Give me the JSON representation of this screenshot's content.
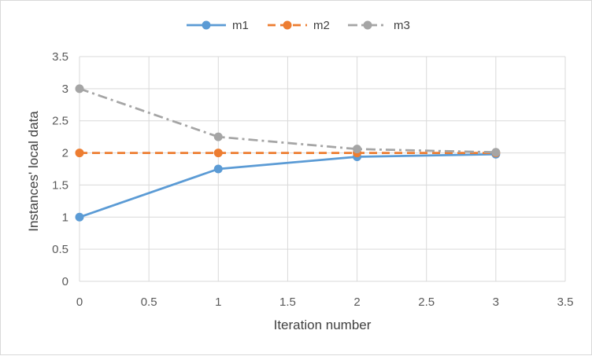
{
  "chart_data": {
    "type": "line",
    "title": "",
    "xlabel": "Iteration number",
    "ylabel": "Instances' local data",
    "xlim": [
      0,
      3.5
    ],
    "ylim": [
      0,
      3.5
    ],
    "xticks": [
      "0",
      "0.5",
      "1",
      "1.5",
      "2",
      "2.5",
      "3",
      "3.5"
    ],
    "yticks": [
      "0",
      "0.5",
      "1",
      "1.5",
      "2",
      "2.5",
      "3",
      "3.5"
    ],
    "grid": true,
    "legend_position": "top",
    "series": [
      {
        "name": "m1",
        "color": "#5b9bd5",
        "style": "solid",
        "x": [
          0,
          1,
          2,
          3
        ],
        "y": [
          1,
          1.75,
          1.94,
          1.98
        ]
      },
      {
        "name": "m2",
        "color": "#ed7d31",
        "style": "dashed",
        "x": [
          0,
          1,
          2,
          3
        ],
        "y": [
          2,
          2,
          2,
          2
        ]
      },
      {
        "name": "m3",
        "color": "#a5a5a5",
        "style": "dashdot",
        "x": [
          0,
          1,
          2,
          3
        ],
        "y": [
          3,
          2.25,
          2.06,
          2.01
        ]
      }
    ]
  }
}
